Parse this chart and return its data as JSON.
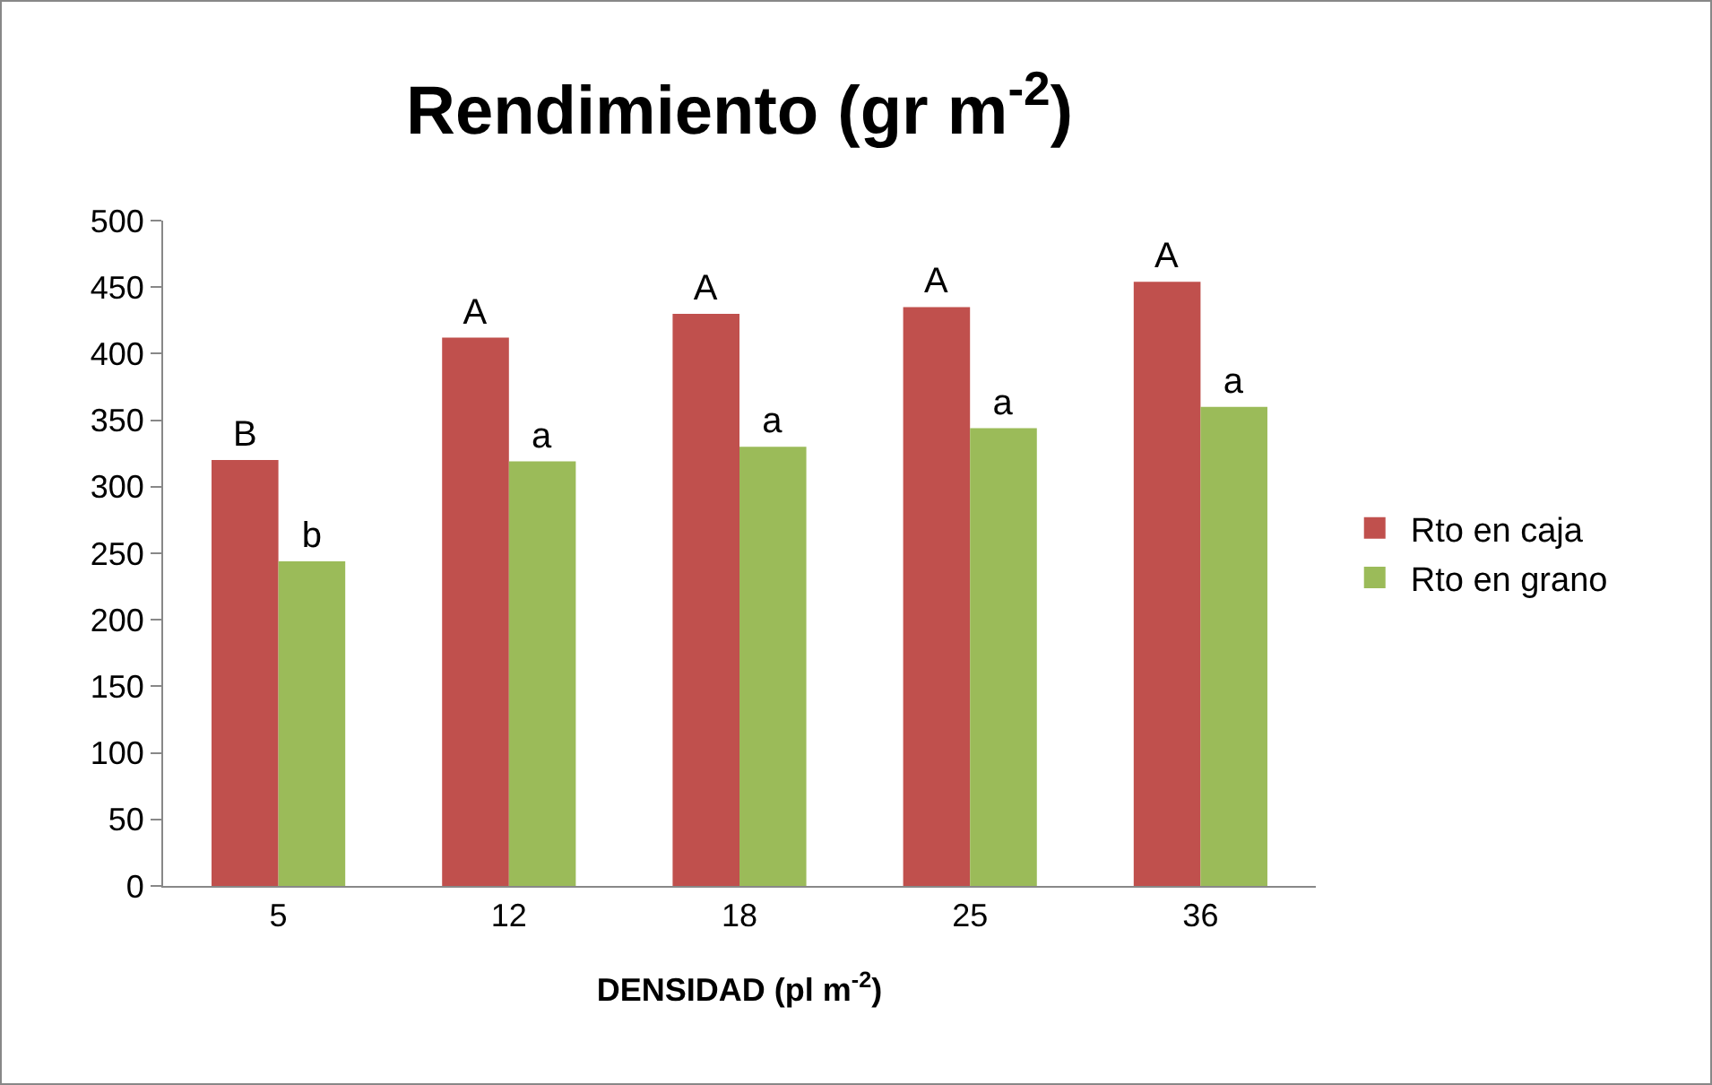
{
  "chart_data": {
    "type": "bar",
    "title": "Rendimiento (gr m$^{-2}$)",
    "xlabel": "DENSIDAD (pl m$^{-2}$)",
    "categories": [
      "5",
      "12",
      "18",
      "25",
      "36"
    ],
    "series": [
      {
        "name": "Rto en caja",
        "color": "#c0504d",
        "values": [
          320,
          412,
          430,
          435,
          454
        ],
        "value_labels": [
          "B",
          "A",
          "A",
          "A",
          "A"
        ]
      },
      {
        "name": "Rto en grano",
        "color": "#9bbb59",
        "values": [
          244,
          319,
          330,
          344,
          360
        ],
        "value_labels": [
          "b",
          "a",
          "a",
          "a",
          "a"
        ]
      }
    ],
    "ylim": [
      0,
      500
    ],
    "yticks": [
      0,
      50,
      100,
      150,
      200,
      250,
      300,
      350,
      400,
      450,
      500
    ],
    "grid": false,
    "legend": "right"
  }
}
